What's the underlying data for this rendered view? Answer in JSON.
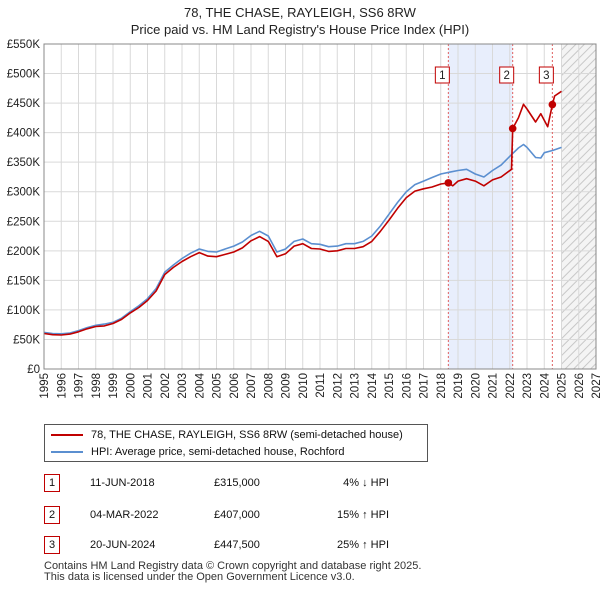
{
  "title_line1": "78, THE CHASE, RAYLEIGH, SS6 8RW",
  "title_line2": "Price paid vs. HM Land Registry's House Price Index (HPI)",
  "chart_data": {
    "type": "line",
    "title": "78, THE CHASE, RAYLEIGH, SS6 8RW — Price paid vs. HM Land Registry's House Price Index (HPI)",
    "xlim": [
      1995,
      2027
    ],
    "ylim": [
      0,
      550000
    ],
    "x_ticks": [
      1995,
      1996,
      1997,
      1998,
      1999,
      2000,
      2001,
      2002,
      2003,
      2004,
      2005,
      2006,
      2007,
      2008,
      2009,
      2010,
      2011,
      2012,
      2013,
      2014,
      2015,
      2016,
      2017,
      2018,
      2019,
      2020,
      2021,
      2022,
      2023,
      2024,
      2025,
      2026,
      2027
    ],
    "y_ticks": [
      0,
      50000,
      100000,
      150000,
      200000,
      250000,
      300000,
      350000,
      400000,
      450000,
      500000,
      550000
    ],
    "y_tick_labels": [
      "£0",
      "£50K",
      "£100K",
      "£150K",
      "£200K",
      "£250K",
      "£300K",
      "£350K",
      "£400K",
      "£450K",
      "£500K",
      "£550K"
    ],
    "grid": true,
    "shaded_periods": [
      {
        "from": 2018.44,
        "to": 2022.17,
        "color": "#e8eefc"
      }
    ],
    "forecast_hatch_from": 2025.0,
    "series": [
      {
        "name": "78, THE CHASE, RAYLEIGH, SS6 8RW (semi-detached house)",
        "color": "#c00000",
        "x": [
          1995,
          1995.5,
          1996,
          1996.5,
          1997,
          1997.5,
          1998,
          1998.5,
          1999,
          1999.5,
          2000,
          2000.5,
          2001,
          2001.5,
          2002,
          2002.5,
          2003,
          2003.5,
          2004,
          2004.5,
          2005,
          2005.5,
          2006,
          2006.5,
          2007,
          2007.5,
          2008,
          2008.5,
          2009,
          2009.5,
          2010,
          2010.5,
          2011,
          2011.5,
          2012,
          2012.5,
          2013,
          2013.5,
          2014,
          2014.5,
          2015,
          2015.5,
          2016,
          2016.5,
          2017,
          2017.5,
          2018,
          2018.44,
          2018.7,
          2019,
          2019.5,
          2020,
          2020.5,
          2021,
          2021.5,
          2022.1,
          2022.17,
          2022.5,
          2022.8,
          2023,
          2023.5,
          2023.8,
          2024.2,
          2024.47,
          2024.6,
          2025
        ],
        "values": [
          60000,
          58000,
          57500,
          59000,
          63000,
          68000,
          72000,
          73000,
          77000,
          84000,
          95000,
          104000,
          116000,
          132000,
          160000,
          172000,
          182000,
          190000,
          197000,
          191000,
          190000,
          194000,
          198000,
          205000,
          217000,
          224000,
          216000,
          190000,
          195000,
          208000,
          212000,
          204000,
          203000,
          199000,
          200000,
          204000,
          204000,
          207000,
          216000,
          233000,
          252000,
          272000,
          290000,
          301000,
          305000,
          308000,
          313000,
          315000,
          310000,
          318000,
          322000,
          318000,
          310000,
          320000,
          325000,
          338000,
          407000,
          425000,
          448000,
          440000,
          418000,
          432000,
          410000,
          447500,
          462000,
          470000
        ]
      },
      {
        "name": "HPI: Average price, semi-detached house, Rochford",
        "color": "#5b8fd0",
        "x": [
          1995,
          1995.5,
          1996,
          1996.5,
          1997,
          1997.5,
          1998,
          1998.5,
          1999,
          1999.5,
          2000,
          2000.5,
          2001,
          2001.5,
          2002,
          2002.5,
          2003,
          2003.5,
          2004,
          2004.5,
          2005,
          2005.5,
          2006,
          2006.5,
          2007,
          2007.5,
          2008,
          2008.5,
          2009,
          2009.5,
          2010,
          2010.5,
          2011,
          2011.5,
          2012,
          2012.5,
          2013,
          2013.5,
          2014,
          2014.5,
          2015,
          2015.5,
          2016,
          2016.5,
          2017,
          2017.5,
          2018,
          2018.5,
          2019,
          2019.5,
          2020,
          2020.5,
          2021,
          2021.5,
          2022,
          2022.5,
          2022.8,
          2023,
          2023.5,
          2023.8,
          2024,
          2024.5,
          2025
        ],
        "values": [
          62000,
          60000,
          59500,
          61000,
          65000,
          70000,
          74000,
          76000,
          79000,
          86000,
          97000,
          107000,
          119000,
          136000,
          164000,
          176000,
          187000,
          196000,
          203000,
          199000,
          198000,
          203000,
          208000,
          215000,
          226000,
          233000,
          225000,
          198000,
          203000,
          216000,
          220000,
          212000,
          211000,
          207000,
          208000,
          212000,
          212000,
          216000,
          225000,
          242000,
          262000,
          282000,
          300000,
          312000,
          318000,
          324000,
          330000,
          333000,
          336000,
          338000,
          330000,
          325000,
          336000,
          345000,
          360000,
          374000,
          380000,
          375000,
          358000,
          357000,
          366000,
          370000,
          375000
        ]
      }
    ],
    "transactions": [
      {
        "label": "1",
        "date": "11-JUN-2018",
        "price": "£315,000",
        "x": 2018.44,
        "value": 315000,
        "hpi": "4% ↓ HPI"
      },
      {
        "label": "2",
        "date": "04-MAR-2022",
        "price": "£407,000",
        "x": 2022.17,
        "value": 407000,
        "hpi": "15% ↑ HPI"
      },
      {
        "label": "3",
        "date": "20-JUN-2024",
        "price": "£447,500",
        "x": 2024.47,
        "value": 447500,
        "hpi": "25% ↑ HPI"
      }
    ]
  },
  "legend": {
    "property_label": "78, THE CHASE, RAYLEIGH, SS6 8RW (semi-detached house)",
    "hpi_label": "HPI: Average price, semi-detached house, Rochford"
  },
  "footer_line1": "Contains HM Land Registry data © Crown copyright and database right 2025.",
  "footer_line2": "This data is licensed under the Open Government Licence v3.0."
}
